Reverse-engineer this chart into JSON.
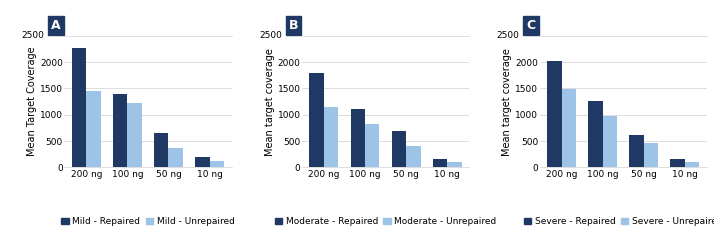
{
  "panels": [
    {
      "label": "A",
      "ylabel": "Mean Target Coverage",
      "categories": [
        "200 ng",
        "100 ng",
        "50 ng",
        "10 ng"
      ],
      "repaired": [
        2270,
        1390,
        650,
        195
      ],
      "unrepaired": [
        1460,
        1215,
        375,
        115
      ],
      "legend_repaired": "Mild - Repaired",
      "legend_unrepaired": "Mild - Unrepaired"
    },
    {
      "label": "B",
      "ylabel": "Mean target coverage",
      "categories": [
        "200 ng",
        "100 ng",
        "50 ng",
        "10 ng"
      ],
      "repaired": [
        1790,
        1100,
        695,
        150
      ],
      "unrepaired": [
        1155,
        815,
        410,
        110
      ],
      "legend_repaired": "Moderate - Repaired",
      "legend_unrepaired": "Moderate - Unrepaired"
    },
    {
      "label": "C",
      "ylabel": "Mean target coverage",
      "categories": [
        "200 ng",
        "100 ng",
        "50 ng",
        "10 ng"
      ],
      "repaired": [
        2020,
        1265,
        610,
        150
      ],
      "unrepaired": [
        1480,
        970,
        460,
        95
      ],
      "legend_repaired": "Severe - Repaired",
      "legend_unrepaired": "Severe - Unrepaired"
    }
  ],
  "ylim": [
    0,
    2500
  ],
  "yticks_inside": [
    0,
    500,
    1000,
    1500,
    2000
  ],
  "ytick_top_label": "2500",
  "ytick_top_value": 2500,
  "color_repaired": "#1F3864",
  "color_unrepaired": "#9DC3E6",
  "bar_width": 0.35,
  "label_bg_color": "#1F3864",
  "label_text_color": "#FFFFFF",
  "background_color": "#FFFFFF",
  "grid_color": "#D0D0D0",
  "tick_fontsize": 6.5,
  "legend_fontsize": 6.5,
  "ylabel_fontsize": 7,
  "label_fontsize": 9
}
